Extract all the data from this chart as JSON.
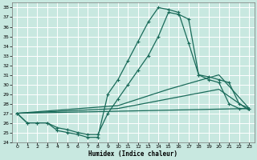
{
  "xlabel": "Humidex (Indice chaleur)",
  "xlim": [
    -0.5,
    23.5
  ],
  "ylim": [
    24,
    38.5
  ],
  "yticks": [
    24,
    25,
    26,
    27,
    28,
    29,
    30,
    31,
    32,
    33,
    34,
    35,
    36,
    37,
    38
  ],
  "xticks": [
    0,
    1,
    2,
    3,
    4,
    5,
    6,
    7,
    8,
    9,
    10,
    11,
    12,
    13,
    14,
    15,
    16,
    17,
    18,
    19,
    20,
    21,
    22,
    23
  ],
  "bg_color": "#c8e8e0",
  "line_color": "#1a6b5a",
  "grid_color": "#ffffff",
  "line1_x": [
    0,
    1,
    2,
    3,
    4,
    5,
    6,
    7,
    8,
    9,
    10,
    11,
    12,
    13,
    14,
    15,
    16,
    17,
    18,
    19,
    20,
    21,
    22,
    23
  ],
  "line1_y": [
    27,
    26,
    26,
    26,
    25.2,
    25.0,
    24.8,
    24.5,
    24.5,
    29.0,
    30.5,
    32.5,
    34.5,
    36.5,
    38.0,
    37.8,
    37.5,
    34.3,
    31.0,
    30.5,
    30.2,
    28.0,
    27.5,
    27.5
  ],
  "line2_x": [
    0,
    1,
    2,
    3,
    4,
    5,
    6,
    7,
    8,
    9,
    10,
    11,
    12,
    13,
    14,
    15,
    16,
    17,
    18,
    19,
    20,
    21,
    22,
    23
  ],
  "line2_y": [
    27,
    26,
    26,
    26,
    25.5,
    25.3,
    25.0,
    24.8,
    24.8,
    27.0,
    28.5,
    30.0,
    31.5,
    33.0,
    35.0,
    37.5,
    37.3,
    36.8,
    31.0,
    30.8,
    30.5,
    30.2,
    28.0,
    27.5
  ],
  "line3_x": [
    0,
    23
  ],
  "line3_y": [
    27,
    27.5
  ],
  "line4_x": [
    0,
    10,
    15,
    20,
    23
  ],
  "line4_y": [
    27,
    27.8,
    29.5,
    31.0,
    27.5
  ],
  "line5_x": [
    0,
    10,
    15,
    20,
    23
  ],
  "line5_y": [
    27,
    27.5,
    28.5,
    29.5,
    27.3
  ]
}
